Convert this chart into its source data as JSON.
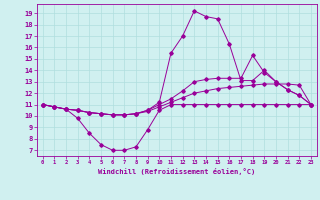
{
  "xlabel": "Windchill (Refroidissement éolien,°C)",
  "bg_color": "#d0f0f0",
  "line_color": "#990099",
  "grid_color": "#b0dede",
  "x_ticks": [
    0,
    1,
    2,
    3,
    4,
    5,
    6,
    7,
    8,
    9,
    10,
    11,
    12,
    13,
    14,
    15,
    16,
    17,
    18,
    19,
    20,
    21,
    22,
    23
  ],
  "y_ticks": [
    7,
    8,
    9,
    10,
    11,
    12,
    13,
    14,
    15,
    16,
    17,
    18,
    19
  ],
  "ylim": [
    6.5,
    19.8
  ],
  "xlim": [
    -0.5,
    23.5
  ],
  "line1": [
    11.0,
    10.8,
    10.6,
    9.8,
    8.5,
    7.5,
    7.0,
    7.0,
    7.3,
    8.8,
    10.5,
    11.0,
    11.0,
    11.0,
    11.0,
    11.0,
    11.0,
    11.0,
    11.0,
    11.0,
    11.0,
    11.0,
    11.0,
    11.0
  ],
  "line2": [
    11.0,
    10.8,
    10.6,
    10.5,
    10.3,
    10.2,
    10.1,
    10.1,
    10.2,
    10.4,
    10.8,
    11.2,
    11.6,
    12.0,
    12.2,
    12.4,
    12.5,
    12.6,
    12.7,
    12.8,
    12.8,
    12.8,
    12.7,
    11.0
  ],
  "line3": [
    11.0,
    10.8,
    10.6,
    10.5,
    10.3,
    10.2,
    10.1,
    10.1,
    10.2,
    10.5,
    11.0,
    11.5,
    12.2,
    13.0,
    13.2,
    13.3,
    13.3,
    13.3,
    15.3,
    13.8,
    13.0,
    12.3,
    11.8,
    11.0
  ],
  "line4": [
    11.0,
    10.8,
    10.6,
    10.5,
    10.3,
    10.2,
    10.1,
    10.1,
    10.2,
    10.5,
    11.2,
    15.5,
    17.0,
    19.2,
    18.7,
    18.5,
    16.3,
    13.1,
    13.1,
    14.0,
    13.0,
    12.3,
    11.8,
    11.0
  ]
}
